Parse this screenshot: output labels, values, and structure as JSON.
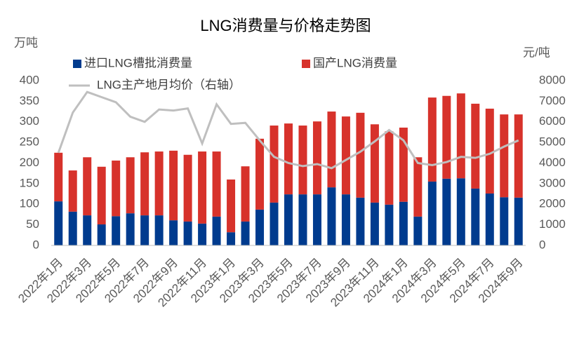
{
  "chart_data": {
    "type": "bar",
    "stacked": true,
    "title": "LNG消费量与价格走势图",
    "y_label": "万吨",
    "y2_label": "元/吨",
    "categories": [
      "2022年1月",
      null,
      "2022年3月",
      null,
      "2022年5月",
      null,
      "2022年7月",
      null,
      "2022年9月",
      null,
      "2022年11月",
      null,
      "2023年1月",
      null,
      "2023年3月",
      null,
      "2023年5月",
      null,
      "2023年7月",
      null,
      "2023年9月",
      null,
      "2023年11月",
      null,
      "2024年1月",
      null,
      "2024年3月",
      null,
      "2024年5月",
      null,
      "2024年7月",
      null,
      "2024年9月"
    ],
    "series": [
      {
        "name": "进口LNG槽批消费量",
        "color": "#003b8e",
        "values": [
          107,
          82,
          73,
          51,
          71,
          78,
          73,
          73,
          61,
          58,
          53,
          70,
          32,
          58,
          87,
          104,
          124,
          124,
          124,
          141,
          124,
          116,
          104,
          99,
          106,
          70,
          155,
          162,
          163,
          138,
          126,
          117,
          116
        ]
      },
      {
        "name": "国产LNG消费量",
        "color": "#d7322b",
        "values": [
          118,
          100,
          141,
          140,
          135,
          136,
          153,
          155,
          169,
          162,
          175,
          158,
          128,
          134,
          172,
          187,
          172,
          167,
          177,
          184,
          189,
          206,
          190,
          178,
          180,
          144,
          204,
          201,
          206,
          206,
          206,
          201,
          202
        ]
      },
      {
        "name": "LNG主产地月均价（右轴）",
        "color": "#bfbfbf",
        "type": "line",
        "axis": "y2",
        "values": [
          4500,
          6450,
          7450,
          7200,
          6950,
          6250,
          6000,
          6600,
          6550,
          6650,
          4950,
          6850,
          5900,
          5950,
          5100,
          4300,
          4000,
          3850,
          3950,
          3750,
          4150,
          4550,
          5050,
          5600,
          5100,
          4000,
          3900,
          4050,
          4300,
          4250,
          4450,
          4800,
          5100
        ]
      }
    ],
    "ylim": [
      0,
      400
    ],
    "yticks": [
      0,
      50,
      100,
      150,
      200,
      250,
      300,
      350,
      400
    ],
    "y2lim": [
      0,
      8000
    ],
    "y2ticks": [
      0,
      1000,
      2000,
      3000,
      4000,
      5000,
      6000,
      7000,
      8000
    ],
    "grid": false
  }
}
